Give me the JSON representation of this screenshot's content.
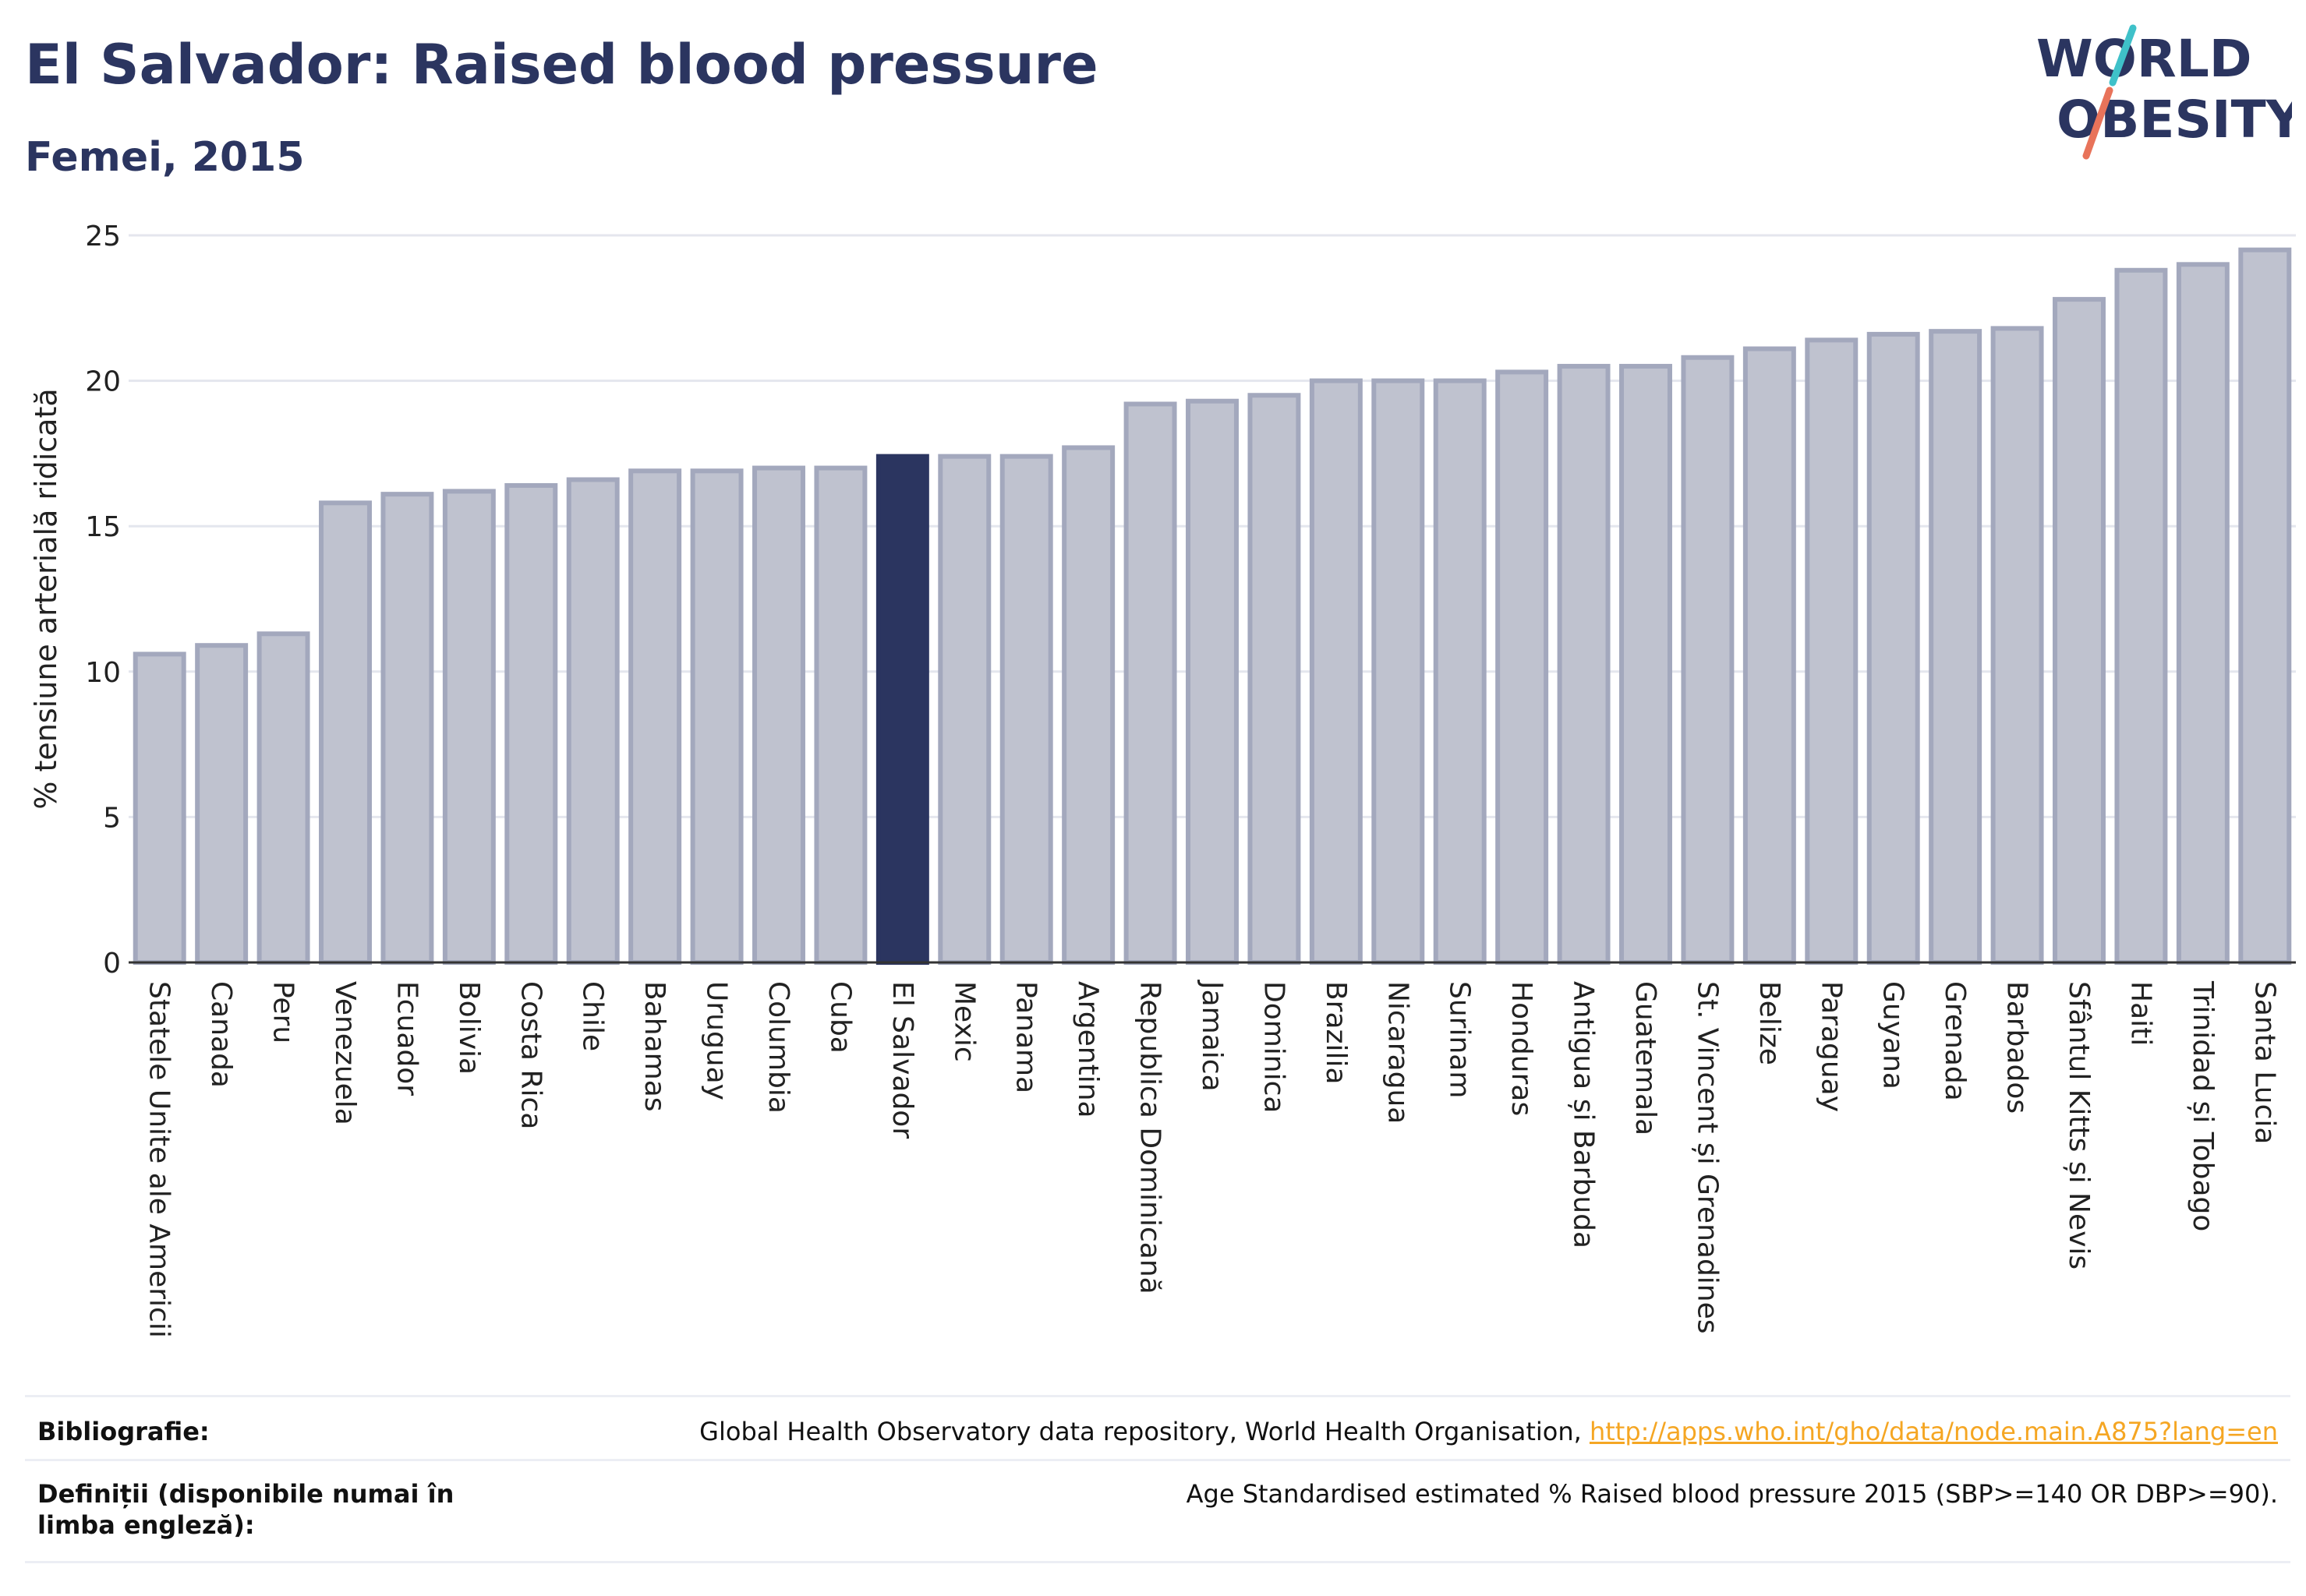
{
  "header": {
    "title": "El Salvador: Raised blood pressure",
    "subtitle": "Femei, 2015"
  },
  "logo": {
    "line1": "WORLD",
    "line2": "OBESITY",
    "colors": {
      "text": "#2b3560",
      "teal": "#3fc1c9",
      "coral": "#e8735a"
    }
  },
  "colors": {
    "bar": "#bfc2cf",
    "bar_stroke": "#a3a8bd",
    "highlight": "#2b3560",
    "grid": "#e4e6ee",
    "axis": "#333333"
  },
  "chart_data": {
    "type": "bar",
    "title": "El Salvador: Raised blood pressure",
    "subtitle": "Femei, 2015",
    "xlabel": "",
    "ylabel": "% tensiune arterială ridicată",
    "ylim": [
      0,
      25
    ],
    "yticks": [
      0,
      5,
      10,
      15,
      20,
      25
    ],
    "grid": true,
    "highlight": "El Salvador",
    "categories": [
      "Statele Unite ale Americii",
      "Canada",
      "Peru",
      "Venezuela",
      "Ecuador",
      "Bolivia",
      "Costa Rica",
      "Chile",
      "Bahamas",
      "Uruguay",
      "Columbia",
      "Cuba",
      "El Salvador",
      "Mexic",
      "Panama",
      "Argentina",
      "Republica Dominicană",
      "Jamaica",
      "Dominica",
      "Brazilia",
      "Nicaragua",
      "Surinam",
      "Honduras",
      "Antigua și Barbuda",
      "Guatemala",
      "St. Vincent și Grenadines",
      "Belize",
      "Paraguay",
      "Guyana",
      "Grenada",
      "Barbados",
      "Sfântul Kitts și Nevis",
      "Haiti",
      "Trinidad și Tobago",
      "Santa Lucia"
    ],
    "values": [
      10.6,
      10.9,
      11.3,
      15.8,
      16.1,
      16.2,
      16.4,
      16.6,
      16.9,
      16.9,
      17.0,
      17.0,
      17.4,
      17.4,
      17.4,
      17.7,
      19.2,
      19.3,
      19.5,
      20.0,
      20.0,
      20.0,
      20.3,
      20.5,
      20.5,
      20.8,
      21.1,
      21.4,
      21.6,
      21.7,
      21.8,
      22.8,
      23.8,
      24.0,
      24.5
    ]
  },
  "footer": {
    "sources_label": "Bibliografie:",
    "sources_text": "Global Health Observatory data repository, World Health Organisation,",
    "sources_link": "http://apps.who.int/gho/data/node.main.A875?lang=en",
    "definitions_label": "Definiții (disponibile numai în limba engleză):",
    "definitions_text": "Age Standardised estimated % Raised blood pressure 2015 (SBP>=140 OR DBP>=90)."
  }
}
